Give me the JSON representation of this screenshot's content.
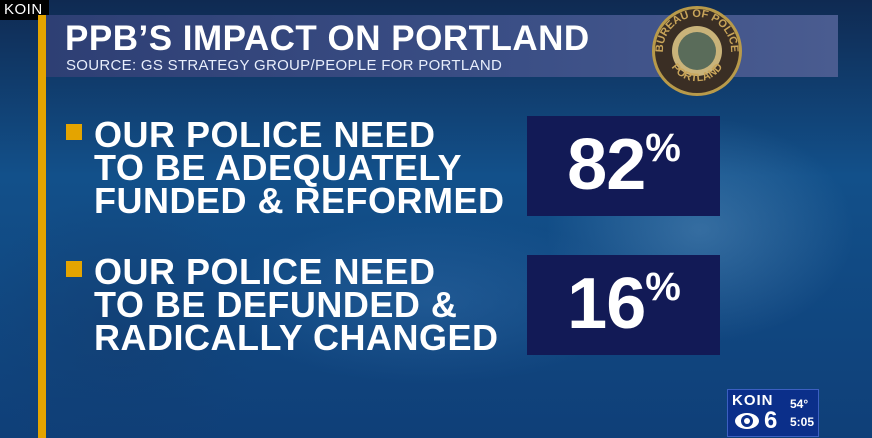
{
  "corner_tag": "KOIN",
  "header": {
    "title": "PPB’S IMPACT ON PORTLAND",
    "source": "SOURCE: GS STRATEGY GROUP/PEOPLE FOR PORTLAND"
  },
  "seal": {
    "text_top": "BUREAU OF POLICE",
    "text_bottom": "PORTLAND"
  },
  "items": [
    {
      "lines": [
        "OUR POLICE NEED",
        "TO BE ADEQUATELY",
        "FUNDED & REFORMED"
      ],
      "value": "82",
      "unit": "%"
    },
    {
      "lines": [
        "OUR POLICE NEED",
        "TO BE DEFUNDED &",
        "RADICALLY CHANGED"
      ],
      "value": "16",
      "unit": "%"
    }
  ],
  "station": {
    "logo": "KOIN",
    "channel": "6",
    "temperature": "54°",
    "time": "5:05"
  },
  "colors": {
    "accent": "#e4a400",
    "header": "#3b4f86",
    "value_box": "#121a56"
  }
}
